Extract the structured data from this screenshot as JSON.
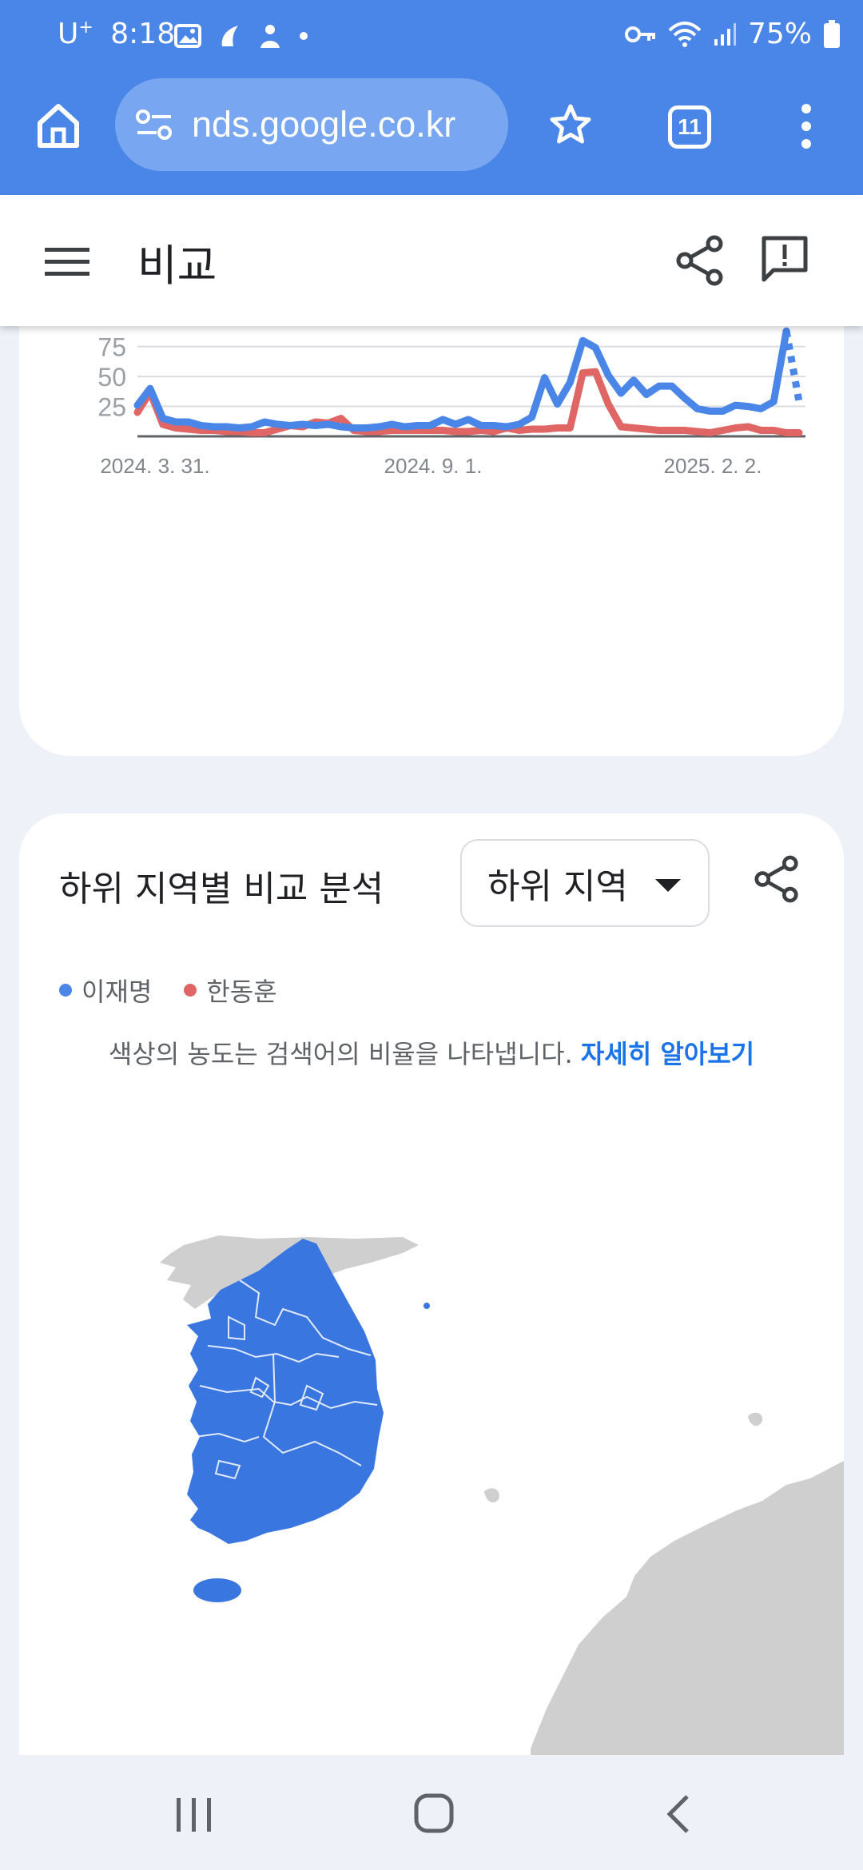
{
  "status_bar": {
    "carrier": "U",
    "carrier_sup": "+",
    "time": "8:18",
    "battery": "75%",
    "icons": [
      "gallery-icon",
      "app-notification-icon",
      "app-notification-icon-2",
      "dot-icon",
      "key-icon",
      "wifi-icon",
      "signal-icon",
      "battery-icon"
    ]
  },
  "browser": {
    "url": "nds.google.co.kr",
    "tab_count": "11"
  },
  "header": {
    "title": "비교"
  },
  "chart_data": {
    "type": "line",
    "x_tick_labels": [
      "2024. 3. 31.",
      "2024. 9. 1.",
      "2025. 2. 2."
    ],
    "y_tick_labels": [
      "25",
      "50",
      "75"
    ],
    "ylim": [
      0,
      100
    ],
    "grid": true,
    "series": [
      {
        "name": "이재명",
        "color": "#4a86e8",
        "values": [
          26,
          40,
          15,
          12,
          12,
          9,
          8,
          8,
          7,
          8,
          12,
          10,
          9,
          10,
          9,
          10,
          8,
          7,
          7,
          8,
          10,
          8,
          9,
          9,
          14,
          10,
          14,
          9,
          9,
          8,
          10,
          16,
          49,
          27,
          45,
          80,
          74,
          51,
          36,
          47,
          35,
          42,
          42,
          32,
          23,
          21,
          21,
          26,
          25,
          23,
          29,
          88
        ],
        "partial_tail": [
          88,
          29
        ]
      },
      {
        "name": "한동훈",
        "color": "#e06666",
        "values": [
          20,
          37,
          10,
          7,
          6,
          5,
          5,
          4,
          4,
          3,
          3,
          6,
          9,
          8,
          12,
          11,
          15,
          5,
          4,
          4,
          5,
          5,
          5,
          5,
          5,
          4,
          4,
          5,
          4,
          7,
          5,
          6,
          6,
          7,
          7,
          53,
          54,
          27,
          8,
          7,
          6,
          5,
          5,
          5,
          4,
          3,
          5,
          7,
          8,
          5,
          5,
          3,
          3
        ]
      }
    ]
  },
  "region_section": {
    "title": "하위 지역별 비교 분석",
    "dropdown_value": "하위 지역",
    "legend": [
      {
        "label": "이재명",
        "color": "#4a86e8"
      },
      {
        "label": "한동훈",
        "color": "#e06666"
      }
    ],
    "note": "색상의 농도는 검색어의 비율을 나타냅니다.",
    "note_link": "자세히 알아보기",
    "map_region_color": "#3a76e0",
    "map_neighbor_color": "#cfcfcf"
  }
}
